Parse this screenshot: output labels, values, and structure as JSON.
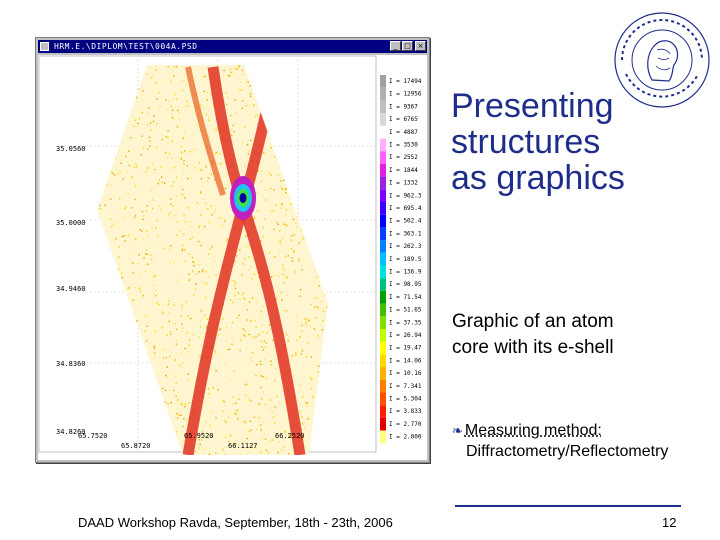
{
  "window": {
    "title": "HRM.E.\\DIPLOM\\TEST\\004A.PSD",
    "minimize": "_",
    "maximize": "□",
    "close": "×"
  },
  "plot": {
    "y_ticks": [
      "35.0560",
      "35.0000",
      "34.9460",
      "34.8360",
      "34.8260"
    ],
    "x_ticks_row1": [
      "65.7520",
      "65.9520",
      "66.2520"
    ],
    "x_ticks_row2": [
      "65.8720",
      "66.1127"
    ],
    "legend": [
      "I = 17494",
      "I = 12956",
      "I = 9367",
      "I = 6765",
      "I = 4887",
      "I = 3530",
      "I = 2552",
      "I = 1844",
      "I = 1332",
      "I = 962.3",
      "I = 695.4",
      "I = 502.4",
      "I = 363.1",
      "I = 262.3",
      "I = 189.5",
      "I = 136.9",
      "I = 98.95",
      "I = 71.54",
      "I = 51.65",
      "I = 37.35",
      "I = 26.94",
      "I = 19.47",
      "I = 14.06",
      "I = 10.16",
      "I = 7.341",
      "I = 5.304",
      "I = 3.833",
      "I = 2.770",
      "I = 2.000"
    ],
    "legend_colors": [
      "#a0a0a0",
      "#b0b0b0",
      "#c0c0c0",
      "#d8d8d8",
      "#ffffff",
      "#ffb0ff",
      "#ff60ff",
      "#e020e0",
      "#a020e0",
      "#8000ff",
      "#4000ff",
      "#0000ff",
      "#0040ff",
      "#0080ff",
      "#00c0ff",
      "#00e0e0",
      "#00c080",
      "#00a000",
      "#40c000",
      "#80e000",
      "#c0ff00",
      "#ffff00",
      "#ffd800",
      "#ffb000",
      "#ff8000",
      "#ff5000",
      "#ff2000",
      "#e00000",
      "#ffff80"
    ]
  },
  "slide": {
    "heading": [
      "Presenting",
      "structures",
      "as graphics"
    ],
    "caption": [
      "Graphic of an atom",
      "core with its e-shell"
    ],
    "bullet_label": "Measuring method:",
    "bullet_value": "Diffractometry/Reflectometry",
    "footer": "DAAD Workshop Ravda, September, 18th - 23th, 2006",
    "page_number": "12"
  },
  "colors": {
    "heading": "#1f2d8a",
    "titlebar": "#000080"
  }
}
